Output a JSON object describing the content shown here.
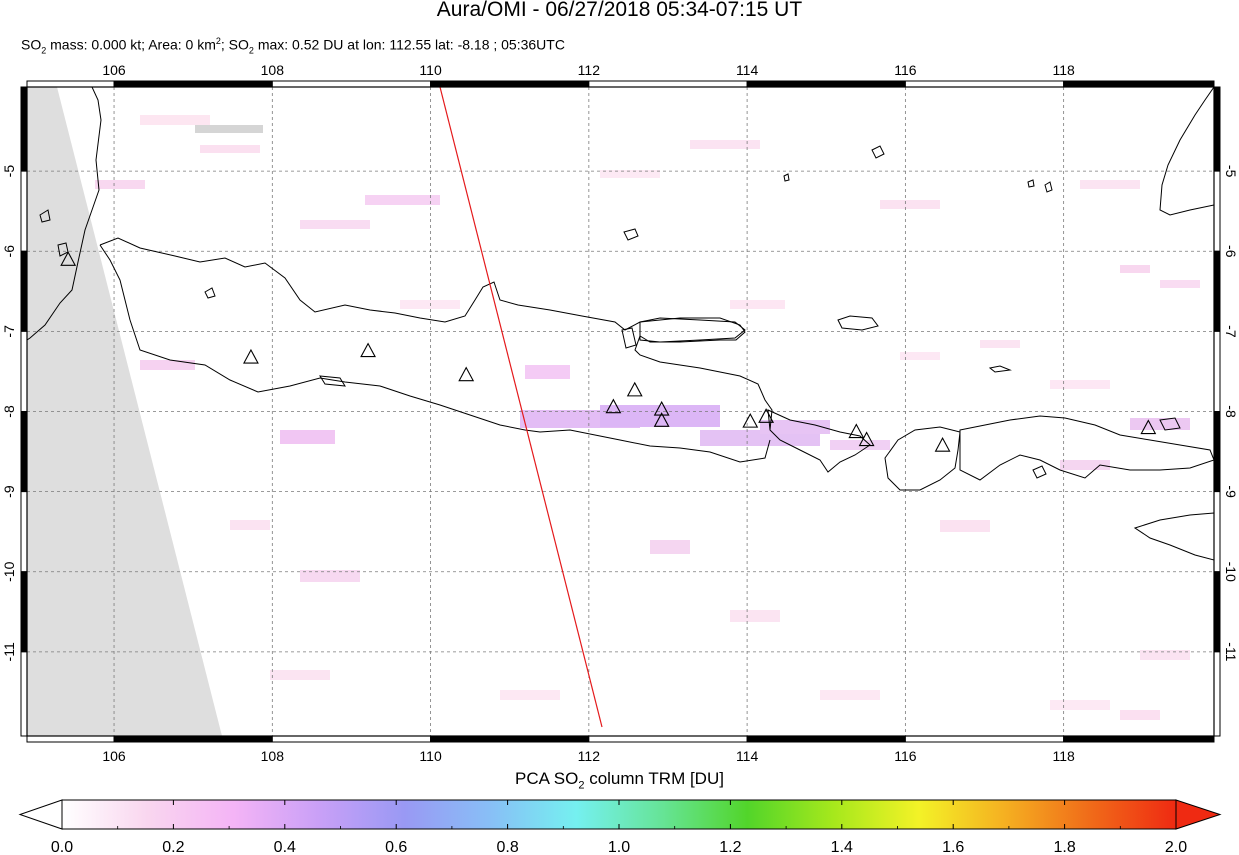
{
  "header": {
    "title": "Aura/OMI - 06/27/2018 05:34-07:15 UT",
    "subtitle_parts": {
      "so": "SO",
      "two": "2",
      "mass_text": " mass: 0.000 kt; Area: 0 km",
      "sup2": "2",
      "semi": "; SO",
      "max_text": " max: 0.52 DU at lon: 112.55 lat: -8.18 ; 05:36UTC"
    }
  },
  "map": {
    "lon_range": [
      104.9,
      119.9
    ],
    "lat_range": [
      -12.05,
      -3.95
    ],
    "lon_ticks": [
      106,
      108,
      110,
      112,
      114,
      116,
      118
    ],
    "lon_tick_labels": [
      "106",
      "108",
      "110",
      "112",
      "114",
      "116",
      "118"
    ],
    "lat_ticks": [
      -5,
      -6,
      -7,
      -8,
      -9,
      -10,
      -11
    ],
    "lat_tick_labels": [
      "-5",
      "-6",
      "-7",
      "-8",
      "-9",
      "-10",
      "-11"
    ],
    "grid": true,
    "orbit_track_color": "#e41a1c",
    "coast_color": "#000000",
    "nodata_color": "#dedede",
    "volcano_marker": "triangle"
  },
  "volcanoes": [
    {
      "lon": 105.42,
      "lat": -6.1
    },
    {
      "lon": 107.73,
      "lat": -7.32
    },
    {
      "lon": 109.21,
      "lat": -7.24
    },
    {
      "lon": 110.45,
      "lat": -7.54
    },
    {
      "lon": 112.31,
      "lat": -7.94
    },
    {
      "lon": 112.58,
      "lat": -7.73
    },
    {
      "lon": 112.92,
      "lat": -7.97
    },
    {
      "lon": 112.92,
      "lat": -8.11
    },
    {
      "lon": 114.04,
      "lat": -8.12
    },
    {
      "lon": 114.24,
      "lat": -8.06
    },
    {
      "lon": 115.38,
      "lat": -8.25
    },
    {
      "lon": 115.51,
      "lat": -8.35
    },
    {
      "lon": 116.47,
      "lat": -8.42
    },
    {
      "lon": 119.07,
      "lat": -8.2
    }
  ],
  "colorbar": {
    "title_pre": "PCA SO",
    "title_sub": "2",
    "title_post": " column TRM [DU]",
    "min": 0.0,
    "max": 2.0,
    "tick_labels": [
      "0.0",
      "0.2",
      "0.4",
      "0.6",
      "0.8",
      "1.0",
      "1.2",
      "1.4",
      "1.6",
      "1.8",
      "2.0"
    ],
    "colors": [
      "#ffffff",
      "#f9d6ef",
      "#f4b4f6",
      "#c9a0f7",
      "#9999f4",
      "#88bff6",
      "#75f0f0",
      "#66e497",
      "#52d52a",
      "#a6e81c",
      "#f3f227",
      "#f5b021",
      "#f06b19",
      "#ef2a12"
    ]
  }
}
